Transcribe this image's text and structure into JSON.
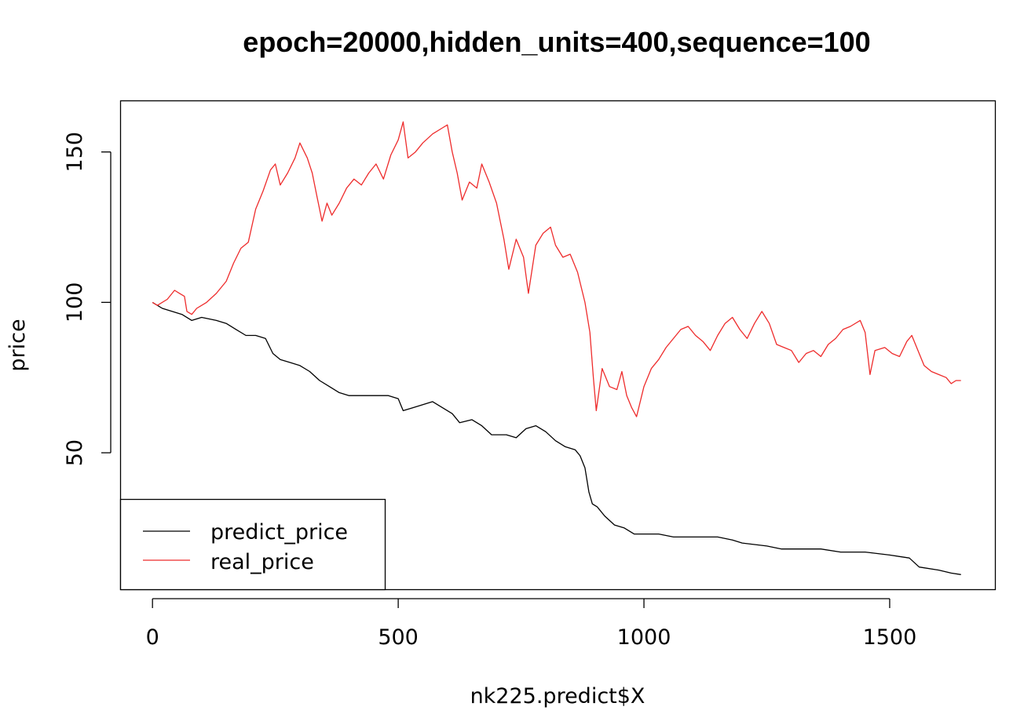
{
  "chart_data": {
    "type": "line",
    "title": "epoch=20000,hidden_units=400,sequence=100",
    "xlabel": "nk225.predict$X",
    "ylabel": "price",
    "xlim": [
      -65,
      1715
    ],
    "ylim": [
      4.5,
      167
    ],
    "xticks": [
      0,
      500,
      1000,
      1500
    ],
    "yticks": [
      50,
      100,
      150
    ],
    "grid": false,
    "legend_position": "bottom-left",
    "series": [
      {
        "name": "predict_price",
        "color": "#000000",
        "points": [
          [
            0,
            100
          ],
          [
            10,
            99
          ],
          [
            20,
            98
          ],
          [
            40,
            97
          ],
          [
            60,
            96
          ],
          [
            80,
            94
          ],
          [
            100,
            95
          ],
          [
            130,
            94
          ],
          [
            150,
            93
          ],
          [
            170,
            91
          ],
          [
            190,
            89
          ],
          [
            210,
            89
          ],
          [
            230,
            88
          ],
          [
            245,
            83
          ],
          [
            260,
            81
          ],
          [
            280,
            80
          ],
          [
            300,
            79
          ],
          [
            320,
            77
          ],
          [
            340,
            74
          ],
          [
            360,
            72
          ],
          [
            380,
            70
          ],
          [
            400,
            69
          ],
          [
            430,
            69
          ],
          [
            460,
            69
          ],
          [
            480,
            69
          ],
          [
            500,
            68
          ],
          [
            510,
            64
          ],
          [
            530,
            65
          ],
          [
            550,
            66
          ],
          [
            570,
            67
          ],
          [
            590,
            65
          ],
          [
            610,
            63
          ],
          [
            625,
            60
          ],
          [
            650,
            61
          ],
          [
            670,
            59
          ],
          [
            690,
            56
          ],
          [
            720,
            56
          ],
          [
            740,
            55
          ],
          [
            760,
            58
          ],
          [
            780,
            59
          ],
          [
            800,
            57
          ],
          [
            820,
            54
          ],
          [
            840,
            52
          ],
          [
            860,
            51
          ],
          [
            870,
            49
          ],
          [
            880,
            45
          ],
          [
            888,
            37
          ],
          [
            895,
            33
          ],
          [
            905,
            32
          ],
          [
            920,
            29
          ],
          [
            940,
            26
          ],
          [
            960,
            25
          ],
          [
            980,
            23
          ],
          [
            1000,
            23
          ],
          [
            1030,
            23
          ],
          [
            1060,
            22
          ],
          [
            1100,
            22
          ],
          [
            1150,
            22
          ],
          [
            1180,
            21
          ],
          [
            1200,
            20
          ],
          [
            1250,
            19
          ],
          [
            1280,
            18
          ],
          [
            1320,
            18
          ],
          [
            1360,
            18
          ],
          [
            1400,
            17
          ],
          [
            1450,
            17
          ],
          [
            1500,
            16
          ],
          [
            1540,
            15
          ],
          [
            1560,
            12
          ],
          [
            1600,
            11
          ],
          [
            1625,
            10
          ],
          [
            1645,
            9.5
          ]
        ]
      },
      {
        "name": "real_price",
        "color": "#ee2c2c",
        "points": [
          [
            0,
            100
          ],
          [
            10,
            99
          ],
          [
            30,
            101
          ],
          [
            45,
            104
          ],
          [
            55,
            103
          ],
          [
            65,
            102
          ],
          [
            70,
            97
          ],
          [
            80,
            96
          ],
          [
            90,
            98
          ],
          [
            110,
            100
          ],
          [
            130,
            103
          ],
          [
            150,
            107
          ],
          [
            165,
            113
          ],
          [
            180,
            118
          ],
          [
            195,
            120
          ],
          [
            210,
            131
          ],
          [
            225,
            137
          ],
          [
            240,
            144
          ],
          [
            250,
            146
          ],
          [
            260,
            139
          ],
          [
            275,
            143
          ],
          [
            290,
            148
          ],
          [
            300,
            153
          ],
          [
            315,
            148
          ],
          [
            325,
            143
          ],
          [
            335,
            135
          ],
          [
            345,
            127
          ],
          [
            355,
            133
          ],
          [
            365,
            129
          ],
          [
            380,
            133
          ],
          [
            395,
            138
          ],
          [
            410,
            141
          ],
          [
            425,
            139
          ],
          [
            440,
            143
          ],
          [
            455,
            146
          ],
          [
            470,
            141
          ],
          [
            485,
            149
          ],
          [
            500,
            154
          ],
          [
            510,
            160
          ],
          [
            520,
            148
          ],
          [
            535,
            150
          ],
          [
            550,
            153
          ],
          [
            570,
            156
          ],
          [
            590,
            158
          ],
          [
            600,
            159
          ],
          [
            610,
            150
          ],
          [
            620,
            143
          ],
          [
            630,
            134
          ],
          [
            645,
            140
          ],
          [
            660,
            138
          ],
          [
            670,
            146
          ],
          [
            685,
            140
          ],
          [
            700,
            133
          ],
          [
            715,
            121
          ],
          [
            725,
            111
          ],
          [
            740,
            121
          ],
          [
            755,
            115
          ],
          [
            765,
            103
          ],
          [
            780,
            119
          ],
          [
            795,
            123
          ],
          [
            810,
            125
          ],
          [
            820,
            119
          ],
          [
            835,
            115
          ],
          [
            850,
            116
          ],
          [
            865,
            110
          ],
          [
            880,
            100
          ],
          [
            890,
            90
          ],
          [
            897,
            75
          ],
          [
            903,
            64
          ],
          [
            915,
            78
          ],
          [
            930,
            72
          ],
          [
            945,
            71
          ],
          [
            955,
            77
          ],
          [
            965,
            69
          ],
          [
            975,
            65
          ],
          [
            985,
            62
          ],
          [
            1000,
            72
          ],
          [
            1015,
            78
          ],
          [
            1030,
            81
          ],
          [
            1045,
            85
          ],
          [
            1060,
            88
          ],
          [
            1075,
            91
          ],
          [
            1090,
            92
          ],
          [
            1105,
            89
          ],
          [
            1120,
            87
          ],
          [
            1135,
            84
          ],
          [
            1150,
            89
          ],
          [
            1165,
            93
          ],
          [
            1180,
            95
          ],
          [
            1195,
            91
          ],
          [
            1210,
            88
          ],
          [
            1225,
            93
          ],
          [
            1240,
            97
          ],
          [
            1255,
            93
          ],
          [
            1270,
            86
          ],
          [
            1285,
            85
          ],
          [
            1300,
            84
          ],
          [
            1315,
            80
          ],
          [
            1330,
            83
          ],
          [
            1345,
            84
          ],
          [
            1360,
            82
          ],
          [
            1375,
            86
          ],
          [
            1390,
            88
          ],
          [
            1405,
            91
          ],
          [
            1420,
            92
          ],
          [
            1440,
            94
          ],
          [
            1450,
            90
          ],
          [
            1460,
            76
          ],
          [
            1470,
            84
          ],
          [
            1490,
            85
          ],
          [
            1505,
            83
          ],
          [
            1520,
            82
          ],
          [
            1535,
            87
          ],
          [
            1545,
            89
          ],
          [
            1560,
            83
          ],
          [
            1570,
            79
          ],
          [
            1585,
            77
          ],
          [
            1600,
            76
          ],
          [
            1615,
            75
          ],
          [
            1625,
            73
          ],
          [
            1635,
            74
          ],
          [
            1645,
            74
          ]
        ]
      }
    ]
  }
}
